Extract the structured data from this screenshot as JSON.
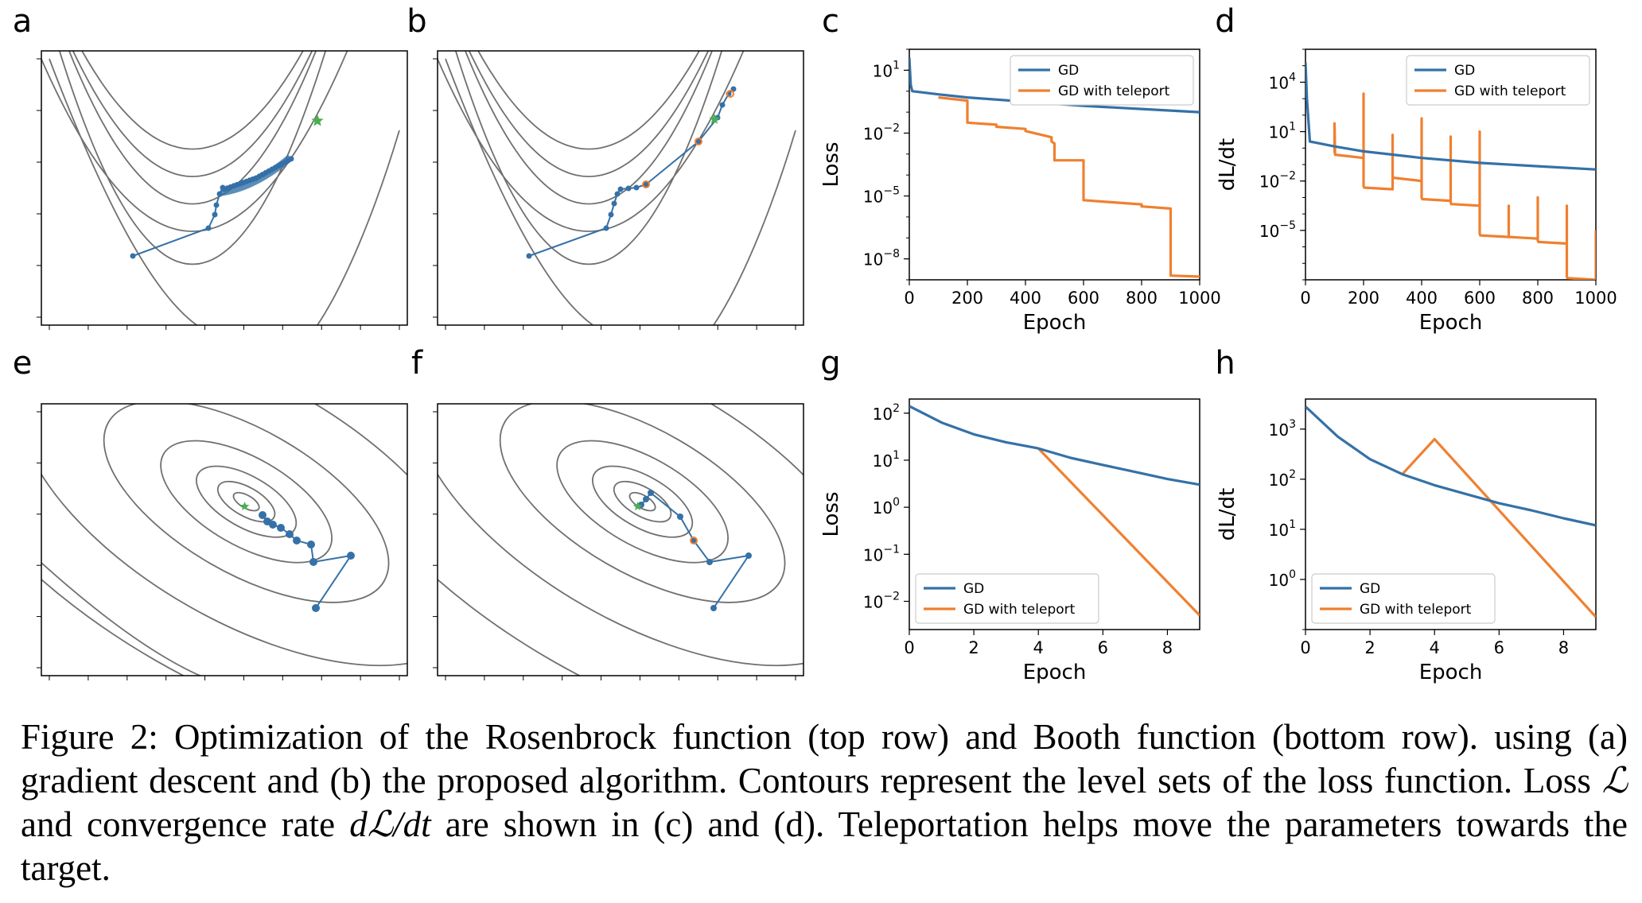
{
  "colors": {
    "gd": "#3571a7",
    "teleport": "#ef8030",
    "contour": "#707070",
    "target": "#4caf50"
  },
  "panel_letters": [
    "a",
    "b",
    "c",
    "d",
    "e",
    "f",
    "g",
    "h"
  ],
  "caption": {
    "figure_label": "Figure 2:",
    "text_1": "Optimization of the Rosenbrock function (top row) and Booth function (bottom row). using (a) gradient descent and (b) the proposed algorithm. Contours represent the level sets of the loss function. Loss",
    "loss_symbol": "ℒ",
    "text_2": "and convergence rate",
    "rate_symbol": "dℒ/dt",
    "text_3": "are shown in (c) and (d). Teleportation helps move the parameters towards the target."
  },
  "chart_data": [
    {
      "panel": "a",
      "type": "contour",
      "function": "Rosenbrock",
      "series": [
        {
          "name": "",
          "method": "GD"
        }
      ],
      "target_marker": "star"
    },
    {
      "panel": "b",
      "type": "contour",
      "function": "Rosenbrock",
      "series": [
        {
          "name": "",
          "method": "GD with teleport"
        }
      ],
      "target_marker": "star"
    },
    {
      "panel": "c",
      "type": "line",
      "yscale": "log",
      "xlabel": "Epoch",
      "ylabel": "Loss",
      "xlim": [
        0,
        1000
      ],
      "xticks": [
        "0",
        "200",
        "400",
        "600",
        "800",
        "1000"
      ],
      "ylim_log10": [
        -9,
        2
      ],
      "yticks": [
        {
          "v": 1,
          "label": "10^1"
        },
        {
          "v": -2,
          "label": "10^-2"
        },
        {
          "v": -5,
          "label": "10^-5"
        },
        {
          "v": -8,
          "label": "10^-8"
        }
      ],
      "legend_position": "top-right",
      "series": [
        {
          "name": "GD",
          "x": [
            0,
            5,
            10,
            100,
            200,
            400,
            600,
            800,
            1000
          ],
          "log10_y": [
            1.6,
            0.3,
            0.0,
            -0.15,
            -0.3,
            -0.5,
            -0.7,
            -0.85,
            -1.0
          ]
        },
        {
          "name": "GD with teleport",
          "x": [
            100,
            200,
            200,
            300,
            300,
            400,
            400,
            490,
            490,
            500,
            500,
            600,
            600,
            700,
            700,
            800,
            800,
            900,
            900,
            1000
          ],
          "log10_y": [
            -0.3,
            -0.45,
            -1.5,
            -1.6,
            -1.7,
            -1.8,
            -1.9,
            -2.2,
            -2.4,
            -2.5,
            -3.3,
            -3.3,
            -5.2,
            -5.3,
            -5.3,
            -5.4,
            -5.5,
            -5.6,
            -8.8,
            -8.85
          ]
        }
      ]
    },
    {
      "panel": "d",
      "type": "line",
      "yscale": "log",
      "xlabel": "Epoch",
      "ylabel": "dL/dt",
      "xlim": [
        0,
        1000
      ],
      "xticks": [
        "0",
        "200",
        "400",
        "600",
        "800",
        "1000"
      ],
      "ylim_log10": [
        -8,
        6
      ],
      "yticks": [
        {
          "v": 4,
          "label": "10^4"
        },
        {
          "v": 1,
          "label": "10^1"
        },
        {
          "v": -2,
          "label": "10^-2"
        },
        {
          "v": -5,
          "label": "10^-5"
        }
      ],
      "legend_position": "top-right",
      "series": [
        {
          "name": "GD",
          "x": [
            0,
            5,
            15,
            100,
            200,
            400,
            600,
            800,
            1000
          ],
          "log10_y": [
            5.2,
            3.0,
            0.4,
            0.1,
            -0.2,
            -0.6,
            -0.9,
            -1.1,
            -1.3
          ]
        },
        {
          "name": "GD with teleport",
          "x": [
            100,
            100,
            102,
            200,
            200,
            200,
            202,
            300,
            300,
            300,
            302,
            400,
            400,
            400,
            402,
            500,
            500,
            500,
            502,
            600,
            600,
            600,
            602,
            700,
            700,
            700,
            702,
            800,
            800,
            800,
            802,
            900,
            900,
            900,
            902,
            1000,
            1000
          ],
          "log10_y": [
            -0.3,
            1.5,
            -0.4,
            -0.6,
            3.3,
            -2.3,
            -2.4,
            -2.5,
            0.8,
            -1.7,
            -1.8,
            -2.0,
            1.8,
            -3.0,
            -3.1,
            -3.2,
            0.7,
            -3.3,
            -3.4,
            -3.5,
            1.0,
            -5.2,
            -5.3,
            -5.4,
            -3.5,
            -5.3,
            -5.4,
            -5.5,
            -3.0,
            -5.6,
            -5.7,
            -5.8,
            -3.5,
            -7.8,
            -7.9,
            -8.0,
            -5.0
          ]
        }
      ]
    },
    {
      "panel": "e",
      "type": "contour",
      "function": "Booth",
      "series": [
        {
          "name": "",
          "method": "GD"
        }
      ],
      "target_marker": "star"
    },
    {
      "panel": "f",
      "type": "contour",
      "function": "Booth",
      "series": [
        {
          "name": "",
          "method": "GD with teleport"
        }
      ],
      "target_marker": "star"
    },
    {
      "panel": "g",
      "type": "line",
      "yscale": "log",
      "xlabel": "Epoch",
      "ylabel": "Loss",
      "xlim": [
        0,
        9
      ],
      "xticks": [
        "0",
        "2",
        "4",
        "6",
        "8"
      ],
      "ylim_log10": [
        -2.6,
        2.3
      ],
      "yticks": [
        {
          "v": 2,
          "label": "10^2"
        },
        {
          "v": 1,
          "label": "10^1"
        },
        {
          "v": 0,
          "label": "10^0"
        },
        {
          "v": -1,
          "label": "10^-1"
        },
        {
          "v": -2,
          "label": "10^-2"
        }
      ],
      "legend_position": "bottom-left",
      "series": [
        {
          "name": "GD",
          "x": [
            0,
            1,
            2,
            3,
            4,
            5,
            6,
            7,
            8,
            9
          ],
          "log10_y": [
            2.15,
            1.8,
            1.55,
            1.38,
            1.25,
            1.05,
            0.9,
            0.75,
            0.6,
            0.48
          ]
        },
        {
          "name": "GD with teleport",
          "x": [
            4,
            9
          ],
          "log10_y": [
            1.25,
            -2.3
          ]
        }
      ]
    },
    {
      "panel": "h",
      "type": "line",
      "yscale": "log",
      "xlabel": "Epoch",
      "ylabel": "dL/dt",
      "xlim": [
        0,
        9
      ],
      "xticks": [
        "0",
        "2",
        "4",
        "6",
        "8"
      ],
      "ylim_log10": [
        -1,
        3.6
      ],
      "yticks": [
        {
          "v": 3,
          "label": "10^3"
        },
        {
          "v": 2,
          "label": "10^2"
        },
        {
          "v": 1,
          "label": "10^1"
        },
        {
          "v": 0,
          "label": "10^0"
        }
      ],
      "legend_position": "bottom-left",
      "series": [
        {
          "name": "GD",
          "x": [
            0,
            1,
            2,
            3,
            4,
            5,
            6,
            7,
            8,
            9
          ],
          "log10_y": [
            3.45,
            2.85,
            2.4,
            2.1,
            1.88,
            1.7,
            1.52,
            1.38,
            1.22,
            1.08
          ]
        },
        {
          "name": "GD with teleport",
          "x": [
            3,
            4,
            9
          ],
          "log10_y": [
            2.1,
            2.8,
            -0.75
          ]
        }
      ]
    }
  ]
}
